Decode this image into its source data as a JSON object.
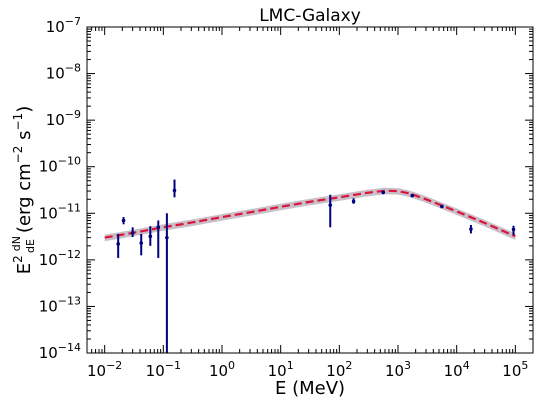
{
  "chart_data": {
    "type": "scatter",
    "title": "LMC-Galaxy",
    "xlabel": "E (MeV)",
    "ylabel_parts": {
      "e2": "E",
      "sup2": "2",
      "frac_num": "dN",
      "frac_den": "dE",
      "unit_open": "(erg cm",
      "sup_m2": "−2",
      "unit_mid": " s",
      "sup_m1": "−1",
      "unit_close": ")"
    },
    "x_scale": "log",
    "y_scale": "log",
    "xlim": [
      0.005,
      200000
    ],
    "ylim": [
      1e-14,
      1e-07
    ],
    "x_ticks": [
      {
        "value": 0.01,
        "base": "10",
        "exp": "−2"
      },
      {
        "value": 0.1,
        "base": "10",
        "exp": "−1"
      },
      {
        "value": 1,
        "base": "10",
        "exp": "0"
      },
      {
        "value": 10,
        "base": "10",
        "exp": "1"
      },
      {
        "value": 100,
        "base": "10",
        "exp": "2"
      },
      {
        "value": 1000,
        "base": "10",
        "exp": "3"
      },
      {
        "value": 10000,
        "base": "10",
        "exp": "4"
      },
      {
        "value": 100000,
        "base": "10",
        "exp": "5"
      }
    ],
    "y_ticks": [
      {
        "value": 1e-14,
        "base": "10",
        "exp": "−14"
      },
      {
        "value": 1e-13,
        "base": "10",
        "exp": "−13"
      },
      {
        "value": 1e-12,
        "base": "10",
        "exp": "−12"
      },
      {
        "value": 1e-11,
        "base": "10",
        "exp": "−11"
      },
      {
        "value": 1e-10,
        "base": "10",
        "exp": "−10"
      },
      {
        "value": 1e-09,
        "base": "10",
        "exp": "−9"
      },
      {
        "value": 1e-08,
        "base": "10",
        "exp": "−8"
      },
      {
        "value": 1e-07,
        "base": "10",
        "exp": "−7"
      }
    ],
    "grid": false,
    "colors": {
      "points": "#00007f",
      "model_line": "#dc143c",
      "model_band": "#c8bfc8"
    },
    "data_points": [
      {
        "x": 0.017,
        "y": 2.2e-12,
        "ylo": 1.1e-12,
        "yhi": 3.6e-12
      },
      {
        "x": 0.021,
        "y": 7e-12,
        "ylo": 5.8e-12,
        "yhi": 8.3e-12
      },
      {
        "x": 0.03,
        "y": 3.8e-12,
        "ylo": 3.1e-12,
        "yhi": 5e-12
      },
      {
        "x": 0.042,
        "y": 2.3e-12,
        "ylo": 1.25e-12,
        "yhi": 3.6e-12
      },
      {
        "x": 0.06,
        "y": 3.2e-12,
        "ylo": 2e-12,
        "yhi": 5.3e-12
      },
      {
        "x": 0.082,
        "y": 5e-12,
        "ylo": 1.1e-12,
        "yhi": 7e-12
      },
      {
        "x": 0.115,
        "y": 3e-12,
        "ylo": 1e-14,
        "yhi": 1e-11
      },
      {
        "x": 0.155,
        "y": 3.1e-11,
        "ylo": 2.2e-11,
        "yhi": 5.3e-11
      },
      {
        "x": 70,
        "y": 1.5e-11,
        "ylo": 5e-12,
        "yhi": 2.5e-11
      },
      {
        "x": 175,
        "y": 1.8e-11,
        "ylo": 1.6e-11,
        "yhi": 2.1e-11
      },
      {
        "x": 560,
        "y": 2.8e-11,
        "ylo": 2.7e-11,
        "yhi": 2.95e-11
      },
      {
        "x": 1750,
        "y": 2.4e-11,
        "ylo": 2.3e-11,
        "yhi": 2.5e-11
      },
      {
        "x": 5600,
        "y": 1.4e-11,
        "ylo": 1.3e-11,
        "yhi": 1.5e-11
      },
      {
        "x": 17500,
        "y": 4.6e-12,
        "ylo": 3.7e-12,
        "yhi": 5.6e-12
      },
      {
        "x": 93000,
        "y": 4.5e-12,
        "ylo": 3.4e-12,
        "yhi": 5.4e-12
      }
    ],
    "model_curve": {
      "x": [
        0.01,
        0.03,
        0.1,
        0.3,
        1,
        3,
        10,
        30,
        100,
        300,
        600,
        1000,
        1500,
        2000,
        3000,
        5000,
        10000,
        30000,
        100000
      ],
      "y": [
        3e-12,
        3.8e-12,
        5e-12,
        6.3e-12,
        8.3e-12,
        1.05e-11,
        1.38e-11,
        1.75e-11,
        2.2e-11,
        2.75e-11,
        3.05e-11,
        3e-11,
        2.7e-11,
        2.4e-11,
        2e-11,
        1.55e-11,
        1.1e-11,
        6.2e-12,
        3.2e-12
      ]
    },
    "model_band_relative_halfwidth": 0.16
  }
}
